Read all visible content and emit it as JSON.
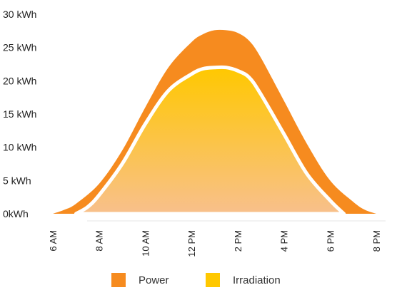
{
  "chart_data": {
    "type": "area",
    "x_labels": [
      "6 AM",
      "8 AM",
      "10 AM",
      "12 PM",
      "2 PM",
      "4 PM",
      "6 PM",
      "8 PM"
    ],
    "y_tick_labels": [
      "0kWh",
      "5 kWh",
      "10 kWh",
      "15 kWh",
      "20 kWh",
      "25 kWh",
      "30 kWh"
    ],
    "ylim": [
      0,
      30
    ],
    "grid": false,
    "legend_position": "bottom",
    "series": [
      {
        "name": "Power",
        "color": "#F68B1F",
        "points": [
          [
            6.0,
            0
          ],
          [
            6.5,
            0.6
          ],
          [
            7.0,
            1.5
          ],
          [
            8.0,
            4.5
          ],
          [
            9.0,
            9.5
          ],
          [
            10.0,
            16
          ],
          [
            11.0,
            22
          ],
          [
            12.0,
            25.8
          ],
          [
            12.5,
            27
          ],
          [
            13.0,
            27.6
          ],
          [
            13.5,
            27.6
          ],
          [
            14.0,
            27.2
          ],
          [
            14.5,
            26
          ],
          [
            15.0,
            23.5
          ],
          [
            16.0,
            17
          ],
          [
            17.0,
            10.5
          ],
          [
            18.0,
            5
          ],
          [
            19.0,
            1.8
          ],
          [
            19.5,
            0.6
          ],
          [
            20.0,
            0
          ]
        ]
      },
      {
        "name": "Irradiation",
        "color": "#FFC800",
        "points": [
          [
            7.0,
            0
          ],
          [
            7.5,
            1
          ],
          [
            8.0,
            2.8
          ],
          [
            9.0,
            7.5
          ],
          [
            10.0,
            13.5
          ],
          [
            11.0,
            18.5
          ],
          [
            12.0,
            21
          ],
          [
            12.5,
            21.8
          ],
          [
            13.0,
            22
          ],
          [
            13.5,
            22
          ],
          [
            14.0,
            21.5
          ],
          [
            14.5,
            20.5
          ],
          [
            15.0,
            18
          ],
          [
            16.0,
            12
          ],
          [
            17.0,
            6
          ],
          [
            18.0,
            2
          ],
          [
            18.6,
            0
          ]
        ]
      }
    ]
  },
  "legend": [
    {
      "label": "Power",
      "color": "#F68B1F"
    },
    {
      "label": "Irradiation",
      "color": "#FFC800"
    }
  ]
}
